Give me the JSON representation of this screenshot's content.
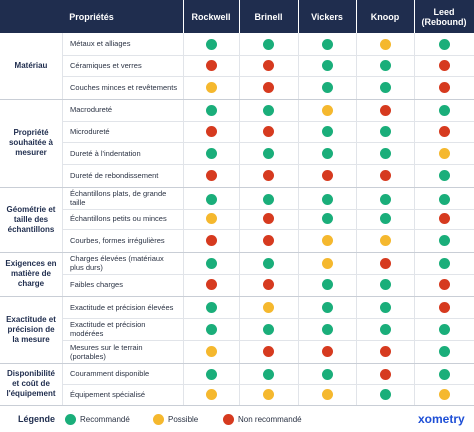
{
  "header": {
    "columns": [
      "Propriétés",
      "Rockwell",
      "Brinell",
      "Vickers",
      "Knoop",
      "Leed (Rebound)"
    ]
  },
  "groups": [
    {
      "label": "Matériau",
      "rows": [
        {
          "label": "Métaux et alliages",
          "ratings": [
            0,
            0,
            0,
            1,
            0
          ]
        },
        {
          "label": "Céramiques et verres",
          "ratings": [
            2,
            2,
            0,
            0,
            2
          ]
        },
        {
          "label": "Couches minces et revêtements",
          "ratings": [
            1,
            2,
            0,
            0,
            2
          ]
        }
      ]
    },
    {
      "label": "Propriété souhaitée à mesurer",
      "rows": [
        {
          "label": "Macrodureté",
          "ratings": [
            0,
            0,
            1,
            2,
            0
          ]
        },
        {
          "label": "Microdureté",
          "ratings": [
            2,
            2,
            0,
            0,
            2
          ]
        },
        {
          "label": "Dureté à l'indentation",
          "ratings": [
            0,
            0,
            0,
            0,
            1
          ]
        },
        {
          "label": "Dureté de rebondissement",
          "ratings": [
            2,
            2,
            2,
            2,
            0
          ]
        }
      ]
    },
    {
      "label": "Géométrie et taille des échantillons",
      "rows": [
        {
          "label": "Échantillons plats, de grande taille",
          "ratings": [
            0,
            0,
            0,
            0,
            0
          ]
        },
        {
          "label": "Échantillons petits ou minces",
          "ratings": [
            1,
            2,
            0,
            0,
            2
          ]
        },
        {
          "label": "Courbes, formes irrégulières",
          "ratings": [
            2,
            2,
            1,
            1,
            0
          ]
        }
      ]
    },
    {
      "label": "Exigences en matière de charge",
      "rows": [
        {
          "label": "Charges élevées (matériaux plus durs)",
          "ratings": [
            0,
            0,
            1,
            2,
            0
          ]
        },
        {
          "label": "Faibles charges",
          "ratings": [
            2,
            2,
            0,
            0,
            2
          ]
        }
      ]
    },
    {
      "label": "Exactitude et précision de la mesure",
      "rows": [
        {
          "label": "Exactitude et précision élevées",
          "ratings": [
            0,
            1,
            0,
            0,
            2
          ]
        },
        {
          "label": "Exactitude et précision modérées",
          "ratings": [
            0,
            0,
            0,
            0,
            0
          ]
        },
        {
          "label": "Mesures sur le terrain (portables)",
          "ratings": [
            1,
            2,
            2,
            2,
            0
          ]
        }
      ]
    },
    {
      "label": "Disponibilité et coût de l'équipement",
      "rows": [
        {
          "label": "Couramment disponible",
          "ratings": [
            0,
            0,
            0,
            2,
            0
          ]
        },
        {
          "label": "Équipement spécialisé",
          "ratings": [
            1,
            1,
            1,
            0,
            1
          ]
        }
      ]
    }
  ],
  "legend": {
    "title": "Légende",
    "items": [
      {
        "label": "Recommandé",
        "color": "#1aae7a"
      },
      {
        "label": "Possible",
        "color": "#f5b82e"
      },
      {
        "label": "Non recommandé",
        "color": "#d63a1f"
      }
    ]
  },
  "logo": "xometry"
}
